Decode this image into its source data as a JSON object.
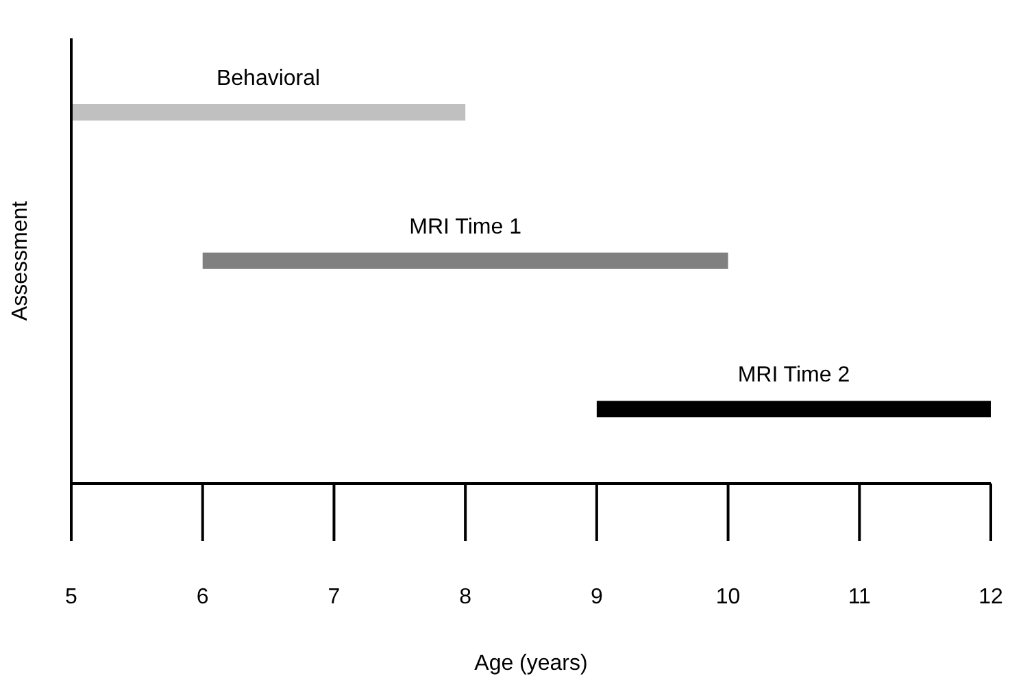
{
  "chart_data": {
    "type": "bar",
    "orientation": "horizontal",
    "xlabel": "Age (years)",
    "ylabel": "Assessment",
    "categories": [
      "Behavioral",
      "MRI Time 1",
      "MRI Time 2"
    ],
    "base": [
      5,
      6,
      9
    ],
    "values": [
      3,
      4,
      3
    ],
    "colors": [
      "#c0c0c0",
      "#808080",
      "#000000"
    ],
    "xlim": [
      5,
      12
    ],
    "xticks": [
      5,
      6,
      7,
      8,
      9,
      10,
      11,
      12
    ],
    "tick_labels": "x"
  }
}
